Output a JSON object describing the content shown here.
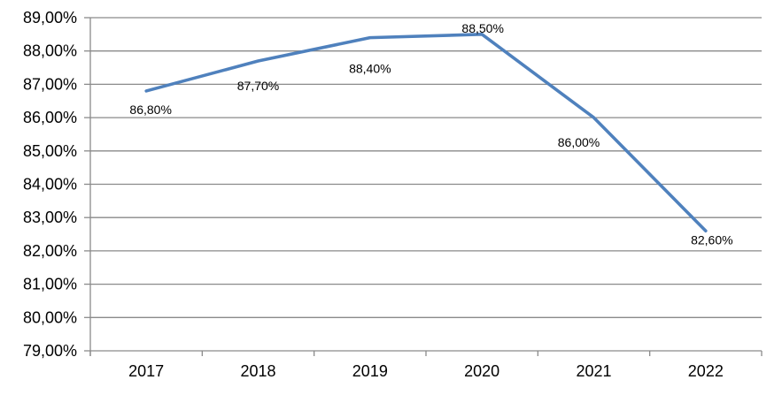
{
  "chart_data": {
    "type": "line",
    "title": "",
    "xlabel": "",
    "ylabel": "",
    "categories": [
      "2017",
      "2018",
      "2019",
      "2020",
      "2021",
      "2022"
    ],
    "series": [
      {
        "name": "",
        "values": [
          86.8,
          87.7,
          88.4,
          88.5,
          86.0,
          82.6
        ],
        "data_labels": [
          "86,80%",
          "87,70%",
          "88,40%",
          "88,50%",
          "86,00%",
          "82,60%"
        ],
        "label_offsets": [
          [
            5,
            21
          ],
          [
            0,
            28
          ],
          [
            0,
            35
          ],
          [
            1,
            -7
          ],
          [
            -17,
            28
          ],
          [
            7,
            10
          ]
        ]
      }
    ],
    "y_tick_labels": [
      "89,00%",
      "88,00%",
      "87,00%",
      "86,00%",
      "85,00%",
      "84,00%",
      "83,00%",
      "82,00%",
      "81,00%",
      "80,00%",
      "79,00%"
    ],
    "ylim": [
      79,
      89
    ],
    "y_step": 1,
    "grid": "horizontal",
    "legend_position": "none",
    "colors": {
      "line": "#4F81BD",
      "gridline": "#8A8A8A",
      "axis": "#8A8A8A",
      "text": "#000000",
      "background": "#FFFFFF"
    }
  }
}
